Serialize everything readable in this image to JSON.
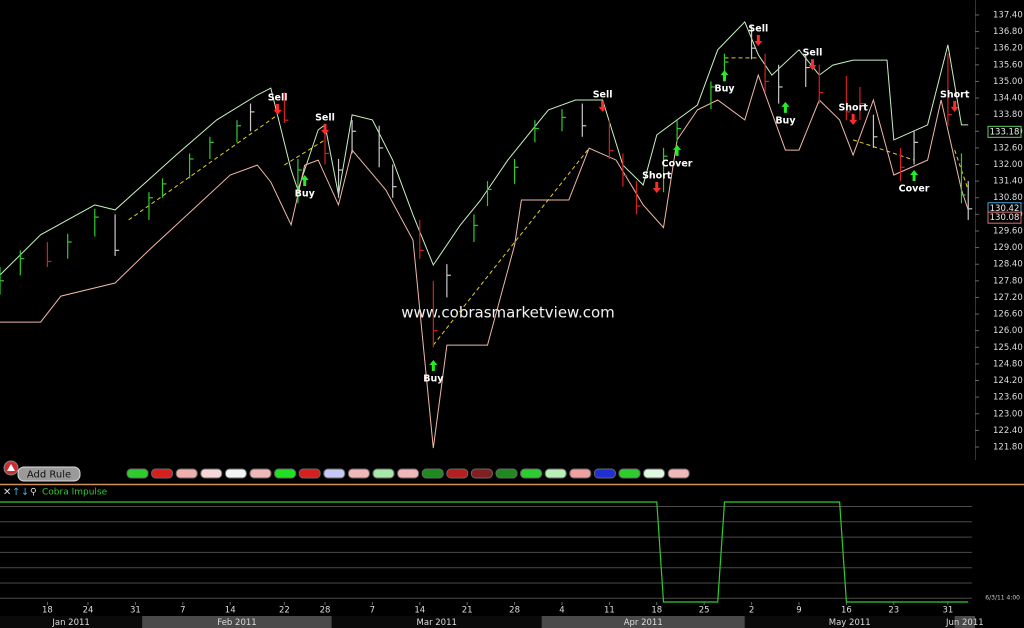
{
  "toolbar": {
    "button": "Add Rule"
  },
  "chart_data": [
    {
      "type": "ohlc",
      "watermark": "www.cobrasmarketview.com",
      "timestamp": "6/3/11 4:00",
      "xlim": [
        "2011-01-11",
        "2011-06-04"
      ],
      "ylim": [
        121.33,
        137.94
      ],
      "yticks": [
        {
          "value": 137.4,
          "label": "137.40"
        },
        {
          "value": 136.8,
          "label": "136.80"
        },
        {
          "value": 136.2,
          "label": "136.20"
        },
        {
          "value": 135.6,
          "label": "135.60"
        },
        {
          "value": 135,
          "label": "135.00"
        },
        {
          "value": 134.4,
          "label": "134.40"
        },
        {
          "value": 133.8,
          "label": "133.80"
        },
        {
          "value": 133.2,
          "label": "133.20"
        },
        {
          "value": 132.6,
          "label": "132.60"
        },
        {
          "value": 132,
          "label": "132.00"
        },
        {
          "value": 131.4,
          "label": "131.40"
        },
        {
          "value": 130.8,
          "label": "130.80"
        },
        {
          "value": 130.2,
          "label": "130.20"
        },
        {
          "value": 129.6,
          "label": "129.60"
        },
        {
          "value": 129,
          "label": "129.00"
        },
        {
          "value": 128.4,
          "label": "128.40"
        },
        {
          "value": 127.8,
          "label": "127.80"
        },
        {
          "value": 127.2,
          "label": "127.20"
        },
        {
          "value": 126.6,
          "label": "126.60"
        },
        {
          "value": 126,
          "label": "126.00"
        },
        {
          "value": 125.4,
          "label": "125.40"
        },
        {
          "value": 124.8,
          "label": "124.80"
        },
        {
          "value": 124.2,
          "label": "124.20"
        },
        {
          "value": 123.6,
          "label": "123.60"
        },
        {
          "value": 123,
          "label": "123.00"
        },
        {
          "value": 122.4,
          "label": "122.40"
        },
        {
          "value": 121.8,
          "label": "121.80"
        }
      ],
      "xticks": [
        {
          "value": "2011-01-18",
          "label": "18"
        },
        {
          "value": "2011-01-24",
          "label": "24"
        },
        {
          "value": "2011-01-31",
          "label": "31"
        },
        {
          "value": "2011-02-07",
          "label": "7"
        },
        {
          "value": "2011-02-14",
          "label": "14"
        },
        {
          "value": "2011-02-22",
          "label": "22"
        },
        {
          "value": "2011-02-28",
          "label": "28"
        },
        {
          "value": "2011-03-07",
          "label": "7"
        },
        {
          "value": "2011-03-14",
          "label": "14"
        },
        {
          "value": "2011-03-21",
          "label": "21"
        },
        {
          "value": "2011-03-28",
          "label": "28"
        },
        {
          "value": "2011-04-04",
          "label": "4"
        },
        {
          "value": "2011-04-11",
          "label": "11"
        },
        {
          "value": "2011-04-18",
          "label": "18"
        },
        {
          "value": "2011-04-25",
          "label": "25"
        },
        {
          "value": "2011-05-02",
          "label": "2"
        },
        {
          "value": "2011-05-09",
          "label": "9"
        },
        {
          "value": "2011-05-16",
          "label": "16"
        },
        {
          "value": "2011-05-23",
          "label": "23"
        },
        {
          "value": "2011-05-31",
          "label": "31"
        }
      ],
      "months": [
        {
          "value": "2011-01",
          "label": "Jan 2011"
        },
        {
          "value": "2011-02",
          "label": "Feb 2011"
        },
        {
          "value": "2011-03",
          "label": "Mar 2011"
        },
        {
          "value": "2011-04",
          "label": "Apr 2011"
        },
        {
          "value": "2011-05",
          "label": "May 2011"
        },
        {
          "value": "2011-06",
          "label": "Jun 2011"
        }
      ],
      "bars": {
        "x": [
          "2011-01-11",
          "2011-01-14",
          "2011-01-18",
          "2011-01-21",
          "2011-01-25",
          "2011-01-28",
          "2011-02-02",
          "2011-02-04",
          "2011-02-08",
          "2011-02-11",
          "2011-02-15",
          "2011-02-17",
          "2011-02-22",
          "2011-02-24",
          "2011-02-28",
          "2011-03-02",
          "2011-03-04",
          "2011-03-08",
          "2011-03-10",
          "2011-03-14",
          "2011-03-16",
          "2011-03-18",
          "2011-03-22",
          "2011-03-24",
          "2011-03-28",
          "2011-03-31",
          "2011-04-04",
          "2011-04-07",
          "2011-04-11",
          "2011-04-13",
          "2011-04-15",
          "2011-04-19",
          "2011-04-21",
          "2011-04-26",
          "2011-04-28",
          "2011-05-02",
          "2011-05-04",
          "2011-05-06",
          "2011-05-10",
          "2011-05-12",
          "2011-05-16",
          "2011-05-18",
          "2011-05-20",
          "2011-05-24",
          "2011-05-26",
          "2011-05-31",
          "2011-06-02",
          "2011-06-03"
        ],
        "high": [
          128.3,
          128.9,
          129.2,
          129.5,
          130.4,
          130.2,
          131.0,
          131.5,
          132.4,
          133.0,
          133.6,
          134.2,
          134.6,
          132.2,
          133.4,
          132.2,
          133.6,
          133.4,
          132.0,
          130.0,
          127.8,
          128.4,
          130.2,
          131.4,
          132.2,
          133.6,
          134.0,
          134.2,
          133.6,
          132.4,
          131.4,
          132.6,
          133.6,
          135.0,
          136.0,
          137.0,
          136.0,
          135.6,
          136.0,
          135.6,
          135.2,
          134.8,
          133.8,
          132.6,
          133.2,
          136.0,
          132.4,
          131.4
        ],
        "low": [
          127.3,
          128.0,
          128.3,
          128.6,
          129.4,
          128.7,
          130.0,
          130.8,
          131.5,
          132.2,
          132.8,
          133.2,
          133.5,
          130.6,
          132.0,
          130.8,
          132.4,
          131.9,
          130.8,
          128.6,
          125.4,
          127.2,
          129.2,
          130.5,
          131.3,
          132.8,
          133.2,
          133.0,
          132.2,
          131.2,
          130.2,
          131.0,
          132.8,
          134.0,
          135.0,
          135.8,
          134.6,
          134.2,
          134.8,
          134.2,
          133.6,
          133.6,
          132.6,
          131.4,
          132.0,
          133.4,
          130.6,
          130.0
        ],
        "close": [
          127.8,
          128.6,
          128.5,
          129.2,
          130.1,
          128.9,
          130.8,
          131.3,
          132.2,
          132.8,
          133.4,
          133.9,
          133.6,
          131.8,
          132.4,
          131.8,
          133.2,
          132.6,
          131.2,
          128.9,
          126.0,
          128.0,
          129.8,
          131.1,
          131.9,
          133.3,
          133.7,
          133.4,
          132.5,
          131.6,
          130.5,
          132.3,
          133.3,
          134.8,
          135.7,
          136.2,
          135.0,
          134.8,
          135.5,
          134.6,
          133.9,
          134.2,
          133.0,
          131.9,
          132.8,
          133.8,
          130.9,
          130.4
        ],
        "colors": [
          "#2ecc2e",
          "#2ecc2e",
          "#d42020",
          "#2ecc2e",
          "#2ecc2e",
          "#c8c8c8",
          "#2ecc2e",
          "#2ecc2e",
          "#2ecc2e",
          "#2ecc2e",
          "#2ecc2e",
          "#c8c8c8",
          "#d42020",
          "#2ecc2e",
          "#d42020",
          "#c8c8c8",
          "#c8c8c8",
          "#c8c8c8",
          "#c8c8c8",
          "#d42020",
          "#d42020",
          "#c8c8c8",
          "#2ecc2e",
          "#2ecc2e",
          "#2ecc2e",
          "#2ecc2e",
          "#2ecc2e",
          "#c8c8c8",
          "#d42020",
          "#d42020",
          "#d42020",
          "#2ecc2e",
          "#2ecc2e",
          "#2ecc2e",
          "#2ecc2e",
          "#c8c8c8",
          "#d42020",
          "#c8c8c8",
          "#c8c8c8",
          "#d42020",
          "#d42020",
          "#d42020",
          "#c8c8c8",
          "#d42020",
          "#c8c8c8",
          "#d42020",
          "#2ecc2e",
          "#c8c8c8"
        ]
      },
      "series": [
        {
          "color": "#c8f0c0",
          "x": [
            "2011-01-11",
            "2011-01-17",
            "2011-01-25",
            "2011-01-28",
            "2011-02-06",
            "2011-02-12",
            "2011-02-18",
            "2011-02-20",
            "2011-02-23",
            "2011-02-24",
            "2011-02-27",
            "2011-02-28",
            "2011-03-02",
            "2011-03-04",
            "2011-03-07",
            "2011-03-10",
            "2011-03-13",
            "2011-03-16",
            "2011-03-20",
            "2011-03-23",
            "2011-03-27",
            "2011-03-30",
            "2011-04-02",
            "2011-04-06",
            "2011-04-10",
            "2011-04-13",
            "2011-04-16",
            "2011-04-18",
            "2011-04-21",
            "2011-04-24",
            "2011-04-27",
            "2011-05-01",
            "2011-05-03",
            "2011-05-05",
            "2011-05-09",
            "2011-05-12",
            "2011-05-14",
            "2011-05-17",
            "2011-05-22",
            "2011-05-23",
            "2011-05-28",
            "2011-05-31",
            "2011-06-02",
            "2011-06-03"
          ],
          "values": [
            128.01,
            129.46,
            130.54,
            130.36,
            132.34,
            133.61,
            134.51,
            134.76,
            131.8,
            131.08,
            133.25,
            133.43,
            130.9,
            133.79,
            133.61,
            132.16,
            130.18,
            128.37,
            129.82,
            130.72,
            132.16,
            133.07,
            133.97,
            134.33,
            134.33,
            131.98,
            131.26,
            133.07,
            133.61,
            134.15,
            136.14,
            137.15,
            135.96,
            135.23,
            136.14,
            135.23,
            135.59,
            135.77,
            135.77,
            132.89,
            133.43,
            136.32,
            133.43,
            133.43
          ]
        },
        {
          "color": "#f0b8a8",
          "x": [
            "2011-01-11",
            "2011-01-17",
            "2011-01-20",
            "2011-01-28",
            "2011-02-02",
            "2011-02-14",
            "2011-02-18",
            "2011-02-20",
            "2011-02-23",
            "2011-02-25",
            "2011-02-27",
            "2011-03-02",
            "2011-03-04",
            "2011-03-09",
            "2011-03-13",
            "2011-03-16",
            "2011-03-18",
            "2011-03-24",
            "2011-03-28",
            "2011-03-29",
            "2011-04-05",
            "2011-04-08",
            "2011-04-12",
            "2011-04-16",
            "2011-04-19",
            "2011-04-21",
            "2011-04-24",
            "2011-04-27",
            "2011-05-01",
            "2011-05-03",
            "2011-05-07",
            "2011-05-09",
            "2011-05-12",
            "2011-05-15",
            "2011-05-17",
            "2011-05-20",
            "2011-05-23",
            "2011-05-28",
            "2011-05-30",
            "2011-06-02",
            "2011-06-03"
          ],
          "values": [
            126.31,
            126.31,
            127.25,
            127.72,
            128.91,
            131.62,
            131.98,
            131.37,
            129.82,
            131.98,
            132.16,
            130.54,
            132.52,
            131.08,
            129.27,
            121.76,
            125.48,
            125.48,
            129.09,
            130.72,
            130.72,
            132.59,
            132.16,
            130.54,
            129.72,
            132.89,
            133.97,
            134.33,
            133.61,
            135.23,
            132.52,
            132.52,
            134.33,
            133.61,
            132.34,
            134.33,
            131.62,
            132.16,
            134.33,
            131.08,
            130.36
          ]
        }
      ],
      "trendline_color": "#e8d020",
      "trendlines": [
        {
          "x": [
            "2011-01-30",
            "2011-02-21"
          ],
          "values": [
            130.0,
            133.79
          ]
        },
        {
          "x": [
            "2011-02-22",
            "2011-02-28"
          ],
          "values": [
            131.98,
            132.89
          ]
        },
        {
          "x": [
            "2011-03-16",
            "2011-04-08"
          ],
          "values": [
            125.48,
            132.59
          ]
        },
        {
          "x": [
            "2011-04-28",
            "2011-05-03"
          ],
          "values": [
            135.85,
            135.85
          ]
        },
        {
          "x": [
            "2011-05-17",
            "2011-05-26"
          ],
          "values": [
            132.89,
            132.16
          ]
        },
        {
          "x": [
            "2011-06-01",
            "2011-06-03"
          ],
          "values": [
            132.52,
            131.08
          ]
        }
      ],
      "signals": [
        {
          "label": "Sell",
          "x": "2011-02-21",
          "value": 133.79,
          "direction": "down",
          "color": "#ff2a2a"
        },
        {
          "label": "Buy",
          "x": "2011-02-25",
          "value": 131.62,
          "direction": "up",
          "color": "#22ee22"
        },
        {
          "label": "Sell",
          "x": "2011-02-28",
          "value": 133.07,
          "direction": "down",
          "color": "#ff2a2a"
        },
        {
          "label": "Buy",
          "x": "2011-03-16",
          "value": 124.94,
          "direction": "up",
          "color": "#22ee22"
        },
        {
          "label": "Sell",
          "x": "2011-04-10",
          "value": 133.9,
          "direction": "down",
          "color": "#ff2a2a"
        },
        {
          "label": "Short",
          "x": "2011-04-18",
          "value": 130.97,
          "direction": "down",
          "color": "#ff2a2a"
        },
        {
          "label": "Cover",
          "x": "2011-04-21",
          "value": 132.71,
          "direction": "up",
          "color": "#22ee22"
        },
        {
          "label": "Buy",
          "x": "2011-04-28",
          "value": 135.41,
          "direction": "up",
          "color": "#22ee22"
        },
        {
          "label": "Sell",
          "x": "2011-05-03",
          "value": 136.28,
          "direction": "down",
          "color": "#ff2a2a"
        },
        {
          "label": "Buy",
          "x": "2011-05-07",
          "value": 134.26,
          "direction": "up",
          "color": "#22ee22"
        },
        {
          "label": "Sell",
          "x": "2011-05-11",
          "value": 135.41,
          "direction": "down",
          "color": "#ff2a2a"
        },
        {
          "label": "Short",
          "x": "2011-05-17",
          "value": 133.43,
          "direction": "down",
          "color": "#ff2a2a"
        },
        {
          "label": "Cover",
          "x": "2011-05-26",
          "value": 131.8,
          "direction": "up",
          "color": "#22ee22"
        },
        {
          "label": "Short",
          "x": "2011-06-01",
          "value": 133.9,
          "direction": "down",
          "color": "#ff2a2a"
        }
      ],
      "price_labels": [
        {
          "value": 133.18,
          "color": "#66cc66"
        },
        {
          "value": 130.42,
          "color": "#4aa8e0"
        },
        {
          "value": 130.08,
          "color": "#e07070"
        }
      ]
    },
    {
      "type": "line",
      "title": "Cobra Impulse",
      "color": "#2ecc2e",
      "xlim": [
        "2011-01-11",
        "2011-06-04"
      ],
      "ylim": [
        0,
        1
      ],
      "x": [
        "2011-01-11",
        "2011-04-18",
        "2011-04-19",
        "2011-04-27",
        "2011-04-28",
        "2011-05-15",
        "2011-05-16",
        "2011-06-03"
      ],
      "values": [
        1,
        1,
        0,
        0,
        1,
        1,
        0,
        0
      ]
    }
  ]
}
